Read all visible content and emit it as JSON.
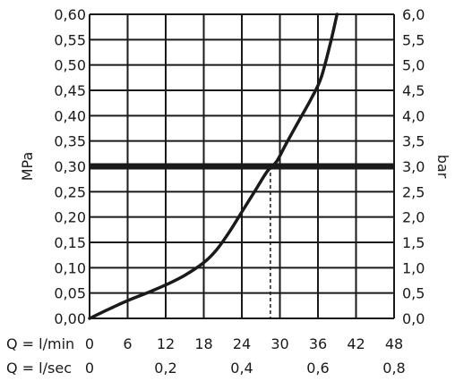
{
  "chart_data": {
    "type": "line",
    "y_left_label": "MPa",
    "y_right_label": "bar",
    "x_top_label": "Q = l/min",
    "x_bottom_label": "Q = l/sec",
    "ylim": [
      0,
      0.6
    ],
    "xlim": [
      0,
      48
    ],
    "y_left_ticks": [
      "0,00",
      "0,05",
      "0,10",
      "0,15",
      "0,20",
      "0,25",
      "0,30",
      "0,35",
      "0,40",
      "0,45",
      "0,50",
      "0,55",
      "0,60"
    ],
    "y_right_ticks": [
      "0,0",
      "0,5",
      "1,0",
      "1,5",
      "2,0",
      "2,5",
      "3,0",
      "3,5",
      "4,0",
      "4,5",
      "5,0",
      "5,5",
      "6,0"
    ],
    "x_lmin_ticks": [
      "0",
      "6",
      "12",
      "18",
      "24",
      "30",
      "36",
      "42",
      "48"
    ],
    "x_lsec_ticks": [
      {
        "label": "0",
        "lmin": 0
      },
      {
        "label": "0,2",
        "lmin": 12
      },
      {
        "label": "0,4",
        "lmin": 24
      },
      {
        "label": "0,6",
        "lmin": 36
      },
      {
        "label": "0,8",
        "lmin": 48
      }
    ],
    "series": [
      {
        "x": [
          0,
          3,
          6,
          9,
          12,
          15,
          18,
          20,
          22,
          24,
          26,
          28,
          29.5,
          31,
          33,
          35,
          36.5,
          38,
          39
        ],
        "y": [
          0.0,
          0.018,
          0.035,
          0.05,
          0.066,
          0.085,
          0.11,
          0.135,
          0.17,
          0.21,
          0.25,
          0.29,
          0.31,
          0.345,
          0.39,
          0.435,
          0.475,
          0.545,
          0.6
        ]
      }
    ],
    "reference_line": {
      "y": 0.3
    },
    "reference_marker": {
      "x": 28.5,
      "y": 0.3
    }
  }
}
